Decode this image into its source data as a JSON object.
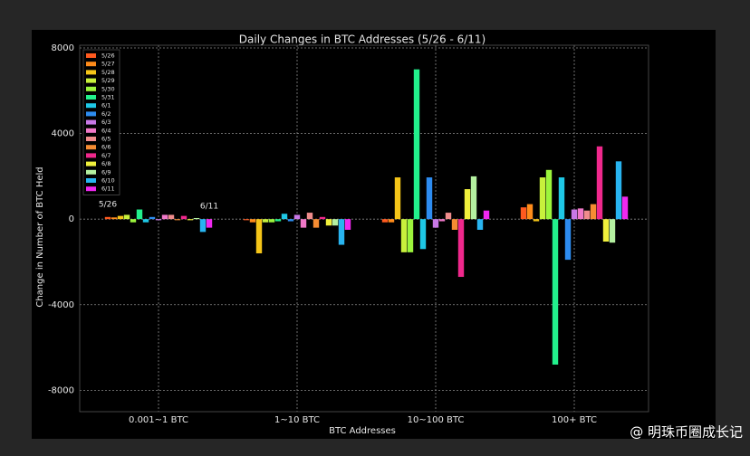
{
  "chart_data": {
    "type": "bar",
    "title": "Daily Changes in BTC Addresses (5/26 - 6/11)",
    "xlabel": "BTC Addresses",
    "ylabel": "Change in Number of BTC Held",
    "categories": [
      "0.001~1 BTC",
      "1~10 BTC",
      "10~100 BTC",
      "100+ BTC"
    ],
    "ylim": [
      -9000,
      8000
    ],
    "yticks": [
      -8000,
      -4000,
      0,
      4000,
      8000
    ],
    "grid": true,
    "legend": "upper left",
    "annotations": [
      "5/26",
      "6/11"
    ],
    "watermark": "@ 明珠币圈成长记",
    "series": [
      {
        "name": "5/26",
        "color": "#ff5a1f",
        "values": [
          100,
          -50,
          -150,
          550
        ]
      },
      {
        "name": "5/27",
        "color": "#ff8c1a",
        "values": [
          80,
          -150,
          -150,
          700
        ]
      },
      {
        "name": "5/28",
        "color": "#f5c518",
        "values": [
          150,
          -1600,
          1950,
          -100
        ]
      },
      {
        "name": "5/29",
        "color": "#c8f03c",
        "values": [
          200,
          -150,
          -1550,
          1950
        ]
      },
      {
        "name": "5/30",
        "color": "#9cf53c",
        "values": [
          -150,
          -150,
          -1550,
          2300
        ]
      },
      {
        "name": "5/31",
        "color": "#22f08c",
        "values": [
          450,
          -100,
          7000,
          -6800
        ]
      },
      {
        "name": "6/1",
        "color": "#1ec8e6",
        "values": [
          -150,
          250,
          -1400,
          1950
        ]
      },
      {
        "name": "6/2",
        "color": "#2d8cf0",
        "values": [
          100,
          -100,
          1950,
          -1900
        ]
      },
      {
        "name": "6/3",
        "color": "#c878e6",
        "values": [
          -50,
          200,
          -400,
          450
        ]
      },
      {
        "name": "6/4",
        "color": "#f078c8",
        "values": [
          200,
          -400,
          -100,
          500
        ]
      },
      {
        "name": "6/5",
        "color": "#f08c8c",
        "values": [
          200,
          300,
          300,
          400
        ]
      },
      {
        "name": "6/6",
        "color": "#f58c32",
        "values": [
          -50,
          -400,
          -500,
          700
        ]
      },
      {
        "name": "6/7",
        "color": "#f0288c",
        "values": [
          150,
          100,
          -2700,
          3400
        ]
      },
      {
        "name": "6/8",
        "color": "#f0f03c",
        "values": [
          -50,
          -300,
          1400,
          -1050
        ]
      },
      {
        "name": "6/9",
        "color": "#b4f0a0",
        "values": [
          50,
          -300,
          2000,
          -1100
        ]
      },
      {
        "name": "6/10",
        "color": "#28b4f0",
        "values": [
          -600,
          -1200,
          -500,
          2700
        ]
      },
      {
        "name": "6/11",
        "color": "#f028f0",
        "values": [
          -400,
          -500,
          400,
          1050
        ]
      }
    ]
  }
}
